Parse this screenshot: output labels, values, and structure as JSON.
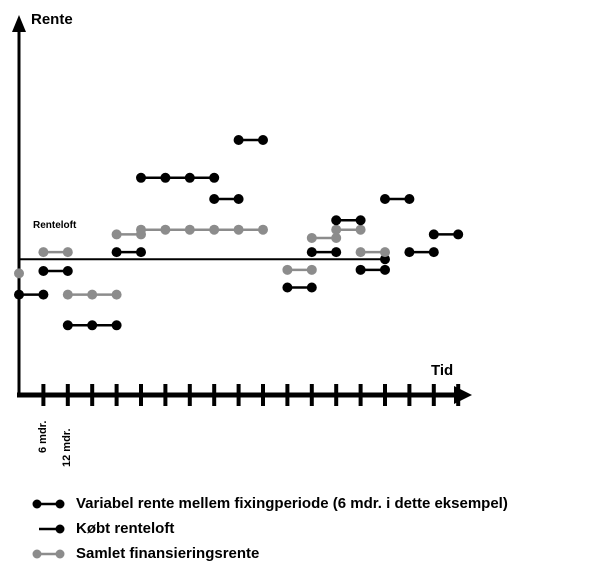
{
  "labels": {
    "y_axis": "Rente",
    "x_axis": "Tid",
    "cap": "Renteloft",
    "tick_6": "6 mdr.",
    "tick_12": "12 mdr."
  },
  "colors": {
    "variable": "#000000",
    "combined": "#8c8c8c",
    "cap": "#000000"
  },
  "legend": [
    {
      "key": "variable",
      "label": "Variabel rente mellem fixingperiode (6 mdr. i dette eksempel)"
    },
    {
      "key": "cap",
      "label": "Købt renteloft"
    },
    {
      "key": "combined",
      "label": "Samlet finansieringsrente"
    }
  ],
  "chart_data": {
    "type": "diagram",
    "period_unit": "6 mdr.",
    "cap_level": 6.0,
    "cap_end_period": 15,
    "variable_rate": [
      {
        "start": 0,
        "end": 1,
        "level": 3.0
      },
      {
        "start": 1,
        "end": 2,
        "level": 5.0
      },
      {
        "start": 2,
        "end": 4,
        "level": 0.4
      },
      {
        "start": 4,
        "end": 5,
        "level": 6.6
      },
      {
        "start": 5,
        "end": 8,
        "level": 12.9
      },
      {
        "start": 8,
        "end": 9,
        "level": 11.1
      },
      {
        "start": 9,
        "end": 10,
        "level": 16.1
      },
      {
        "start": 11,
        "end": 12,
        "level": 3.6
      },
      {
        "start": 12,
        "end": 13,
        "level": 6.6
      },
      {
        "start": 13,
        "end": 14,
        "level": 9.3
      },
      {
        "start": 14,
        "end": 15,
        "level": 5.1
      },
      {
        "start": 15,
        "end": 16,
        "level": 11.1
      },
      {
        "start": 16,
        "end": 17,
        "level": 6.6
      },
      {
        "start": 17,
        "end": 18,
        "level": 8.1
      }
    ],
    "combined_rate": [
      {
        "start": 0,
        "end": 0.1,
        "level": 4.8
      },
      {
        "start": 1,
        "end": 2,
        "level": 6.6
      },
      {
        "start": 2,
        "end": 4,
        "level": 3.0
      },
      {
        "start": 4,
        "end": 5,
        "level": 8.1
      },
      {
        "start": 5,
        "end": 10,
        "level": 8.5
      },
      {
        "start": 11,
        "end": 12,
        "level": 5.1
      },
      {
        "start": 12,
        "end": 13,
        "level": 7.8
      },
      {
        "start": 13,
        "end": 14,
        "level": 8.5
      },
      {
        "start": 14,
        "end": 15,
        "level": 6.6
      }
    ]
  }
}
